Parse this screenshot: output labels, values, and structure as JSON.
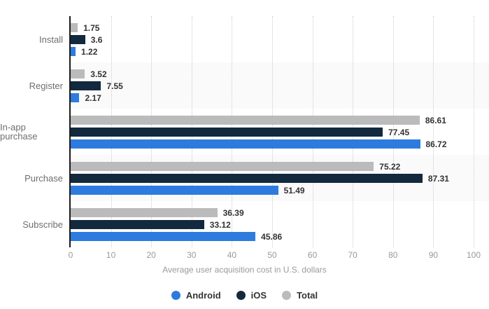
{
  "chart_data": {
    "type": "bar",
    "orientation": "horizontal",
    "title": "",
    "xlabel": "Average user acquisition cost in U.S. dollars",
    "ylabel": "",
    "xlim": [
      0,
      100
    ],
    "x_ticks": [
      0,
      10,
      20,
      30,
      40,
      50,
      60,
      70,
      80,
      90,
      100
    ],
    "grid": "vertical-dotted",
    "legend_position": "bottom",
    "categories": [
      "Install",
      "Register",
      "In-app purchase",
      "Purchase",
      "Subscribe"
    ],
    "series": [
      {
        "name": "Android",
        "color": "#2d7bde",
        "values": [
          1.22,
          2.17,
          86.72,
          51.49,
          45.86
        ],
        "labels": [
          "1.22",
          "2.17",
          "86.72",
          "51.49",
          "45.86"
        ]
      },
      {
        "name": "iOS",
        "color": "#12293e",
        "values": [
          3.6,
          7.55,
          77.45,
          87.31,
          33.12
        ],
        "labels": [
          "3.6",
          "7.55",
          "77.45",
          "87.31",
          "33.12"
        ]
      },
      {
        "name": "Total",
        "color": "#bbbbbb",
        "values": [
          1.75,
          3.52,
          86.61,
          75.22,
          36.39
        ],
        "labels": [
          "1.75",
          "3.52",
          "86.61",
          "75.22",
          "36.39"
        ]
      }
    ],
    "bar_display_order": [
      "Total",
      "iOS",
      "Android"
    ],
    "legend_order": [
      "Android",
      "iOS",
      "Total"
    ]
  },
  "colors": {
    "android": "#2d7bde",
    "ios": "#12293e",
    "total": "#bbbbbb",
    "band_alt": "#fafafa",
    "gridline": "#cccccc",
    "axis_line": "#1a1a1a",
    "category_label": "#6e6e6e",
    "tick_label": "#999999",
    "value_label": "#333333"
  }
}
